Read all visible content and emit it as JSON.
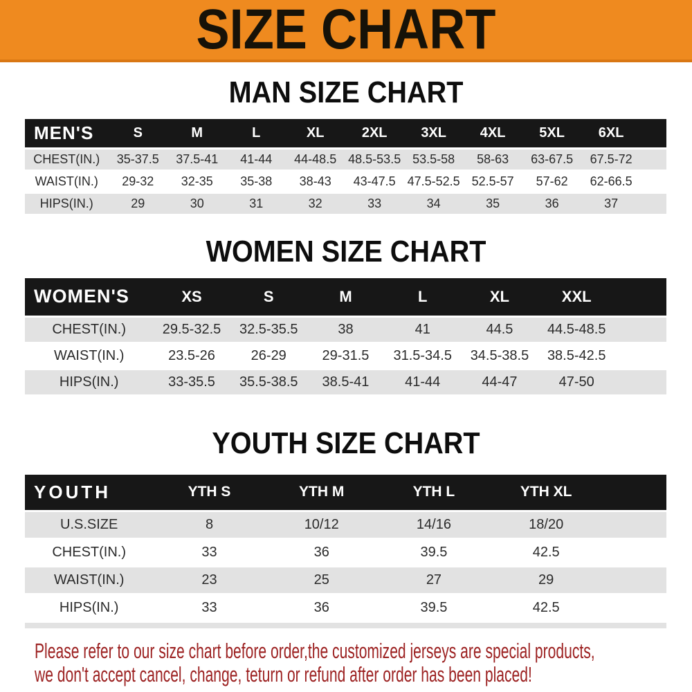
{
  "banner": {
    "title": "SIZE CHART"
  },
  "sections": [
    {
      "heading": "MAN SIZE CHART",
      "group_label": "MEN'S",
      "columns": [
        "S",
        "M",
        "L",
        "XL",
        "2XL",
        "3XL",
        "4XL",
        "5XL",
        "6XL"
      ],
      "rows": [
        {
          "label": "CHEST(IN.)",
          "values": [
            "35-37.5",
            "37.5-41",
            "41-44",
            "44-48.5",
            "48.5-53.5",
            "53.5-58",
            "58-63",
            "63-67.5",
            "67.5-72"
          ]
        },
        {
          "label": "WAIST(IN.)",
          "values": [
            "29-32",
            "32-35",
            "35-38",
            "38-43",
            "43-47.5",
            "47.5-52.5",
            "52.5-57",
            "57-62",
            "62-66.5"
          ]
        },
        {
          "label": "HIPS(IN.)",
          "values": [
            "29",
            "30",
            "31",
            "32",
            "33",
            "34",
            "35",
            "36",
            "37"
          ]
        }
      ]
    },
    {
      "heading": "WOMEN SIZE CHART",
      "group_label": "WOMEN'S",
      "columns": [
        "XS",
        "S",
        "M",
        "L",
        "XL",
        "XXL"
      ],
      "rows": [
        {
          "label": "CHEST(IN.)",
          "values": [
            "29.5-32.5",
            "32.5-35.5",
            "38",
            "41",
            "44.5",
            "44.5-48.5"
          ]
        },
        {
          "label": "WAIST(IN.)",
          "values": [
            "23.5-26",
            "26-29",
            "29-31.5",
            "31.5-34.5",
            "34.5-38.5",
            "38.5-42.5"
          ]
        },
        {
          "label": "HIPS(IN.)",
          "values": [
            "33-35.5",
            "35.5-38.5",
            "38.5-41",
            "41-44",
            "44-47",
            "47-50"
          ]
        }
      ]
    },
    {
      "heading": "YOUTH SIZE CHART",
      "group_label": "YOUTH",
      "columns": [
        "YTH S",
        "YTH M",
        "YTH L",
        "YTH XL"
      ],
      "rows": [
        {
          "label": "U.S.SIZE",
          "values": [
            "8",
            "10/12",
            "14/16",
            "18/20"
          ]
        },
        {
          "label": "CHEST(IN.)",
          "values": [
            "33",
            "36",
            "39.5",
            "42.5"
          ]
        },
        {
          "label": "WAIST(IN.)",
          "values": [
            "23",
            "25",
            "27",
            "29"
          ]
        },
        {
          "label": "HIPS(IN.)",
          "values": [
            "33",
            "36",
            "39.5",
            "42.5"
          ]
        }
      ]
    }
  ],
  "footer": {
    "line1": "Please refer to our size chart before order,the customized jerseys are special products,",
    "line2": "we don't accept cancel, change, teturn or refund after order has been placed!"
  },
  "colors": {
    "banner_background": "#ef8a1f",
    "table_header_background": "#171717",
    "row_stripe": "#e2e2e2",
    "footer_text": "#9c2121"
  }
}
